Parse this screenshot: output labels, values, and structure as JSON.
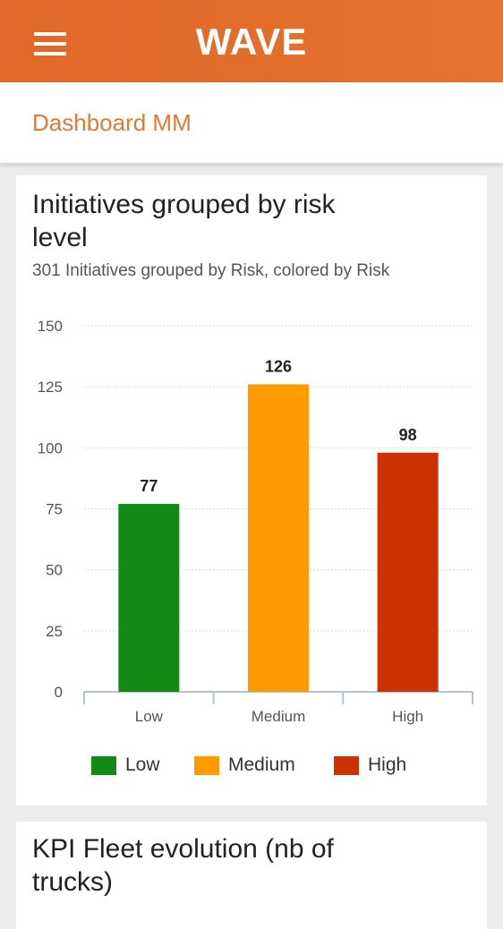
{
  "header": {
    "menu_icon": "hamburger-menu-icon",
    "logo_text": "WAVE"
  },
  "page": {
    "title": "Dashboard MM"
  },
  "cards": [
    {
      "title": "Initiatives grouped by risk level",
      "subtitle": "301 Initiatives grouped by Risk, colored by Risk"
    },
    {
      "title": "KPI Fleet evolution (nb of trucks)"
    }
  ],
  "colors": {
    "header": "#e56f2d",
    "title_accent": "#e07a33",
    "low": "#138a14",
    "medium": "#ff9a00",
    "high": "#cc3300"
  },
  "chart_data": {
    "type": "bar",
    "title": "Initiatives grouped by risk level",
    "subtitle": "301 Initiatives grouped by Risk, colored by Risk",
    "categories": [
      "Low",
      "Medium",
      "High"
    ],
    "values": [
      77,
      126,
      98
    ],
    "colors": [
      "#138a14",
      "#ff9a00",
      "#cc3300"
    ],
    "ylim": [
      0,
      150
    ],
    "yticks": [
      0,
      25,
      50,
      75,
      100,
      125,
      150
    ],
    "grid": true,
    "legend": [
      "Low",
      "Medium",
      "High"
    ],
    "legend_position": "bottom"
  }
}
